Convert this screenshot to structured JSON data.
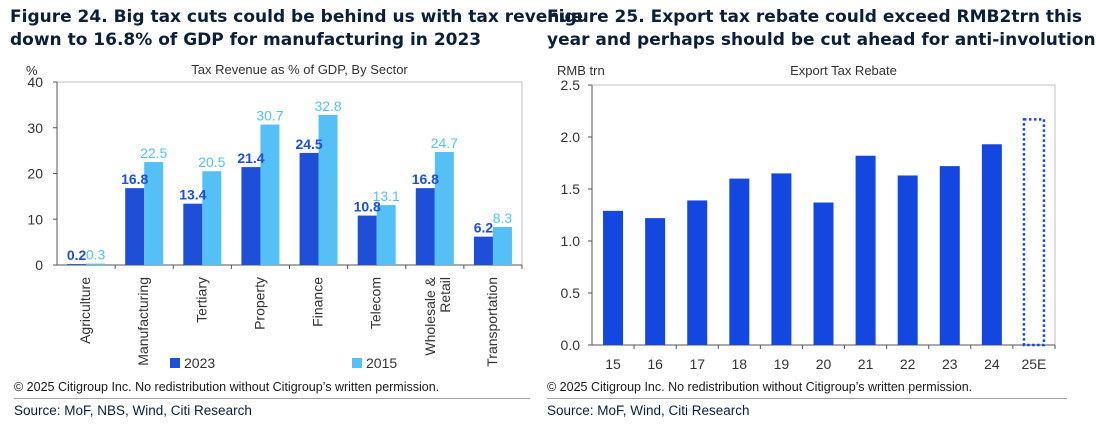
{
  "left": {
    "title_line1": "Figure 24. Big tax cuts could be behind us with tax revenue",
    "title_line2": "down to 16.8% of GDP for manufacturing in 2023",
    "copyright": "© 2025 Citigroup Inc. No redistribution without Citigroup’s written permission.",
    "source": "Source: MoF, NBS, Wind, Citi Research"
  },
  "right": {
    "title_line1": "Figure 25. Export tax rebate could exceed RMB2trn this",
    "title_line2": "year and perhaps should be cut ahead for anti-involution",
    "copyright": "© 2025 Citigroup Inc. No redistribution without Citigroup’s written permission.",
    "source": "Source: MoF, Wind, Citi Research"
  },
  "colors": {
    "series_2023": "#1f4fd6",
    "series_2015": "#54c0f5",
    "rebate": "#1446e0",
    "estimate_border": "#1446e0",
    "title": "#0b1f3a"
  },
  "chart_data": [
    {
      "type": "bar",
      "title": "Tax Revenue as % of GDP, By Sector",
      "ylabel": "%",
      "ylim": [
        0,
        40
      ],
      "yticks": [
        0,
        10,
        20,
        30,
        40
      ],
      "categories": [
        "Agriculture",
        "Manufacturing",
        "Tertiary",
        "Property",
        "Finance",
        "Telecom",
        "Wholesale & Retail",
        "Transportation"
      ],
      "series": [
        {
          "name": "2023",
          "values": [
            0.2,
            16.8,
            13.4,
            21.4,
            24.5,
            10.8,
            16.8,
            6.2
          ],
          "labels": [
            "0.2",
            "16.8",
            "13.4",
            "21.4",
            "24.5",
            "10.8",
            "16.8",
            "6.2"
          ]
        },
        {
          "name": "2015",
          "values": [
            0.3,
            22.5,
            20.5,
            30.7,
            32.8,
            13.1,
            24.7,
            8.3
          ],
          "labels": [
            "0.3",
            "22.5",
            "20.5",
            "30.7",
            "32.8",
            "13.1",
            "24.7",
            "8.3"
          ]
        }
      ],
      "legend": "bottom",
      "grid": false
    },
    {
      "type": "bar",
      "title": "Export Tax Rebate",
      "ylabel": "RMB trn",
      "ylim": [
        0,
        2.5
      ],
      "yticks": [
        "0.0",
        "0.5",
        "1.0",
        "1.5",
        "2.0",
        "2.5"
      ],
      "categories": [
        "15",
        "16",
        "17",
        "18",
        "19",
        "20",
        "21",
        "22",
        "23",
        "24",
        "25E"
      ],
      "values": [
        1.29,
        1.22,
        1.39,
        1.6,
        1.65,
        1.37,
        1.82,
        1.63,
        1.72,
        1.93,
        2.17
      ],
      "estimate_category": "25E",
      "grid": false
    }
  ]
}
